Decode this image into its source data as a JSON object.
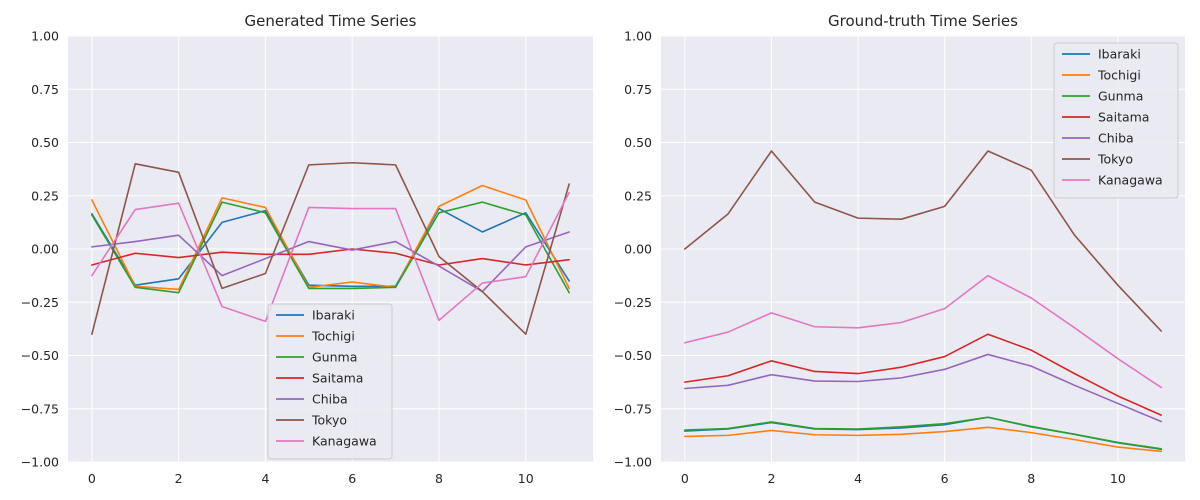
{
  "chart_data": [
    {
      "type": "line",
      "title": "Generated Time Series",
      "xlabel": "",
      "ylabel": "",
      "xlim": [
        -0.55,
        11.55
      ],
      "ylim": [
        -1.0,
        1.0
      ],
      "xticks": [
        0,
        2,
        4,
        6,
        8,
        10
      ],
      "yticks": [
        -1.0,
        -0.75,
        -0.5,
        -0.25,
        0.0,
        0.25,
        0.5,
        0.75,
        1.0
      ],
      "ytick_labels": [
        "−1.00",
        "−0.75",
        "−0.50",
        "−0.25",
        "0.00",
        "0.25",
        "0.50",
        "0.75",
        "1.00"
      ],
      "grid": true,
      "legend_position": "lower-center",
      "x": [
        0,
        1,
        2,
        3,
        4,
        5,
        6,
        7,
        8,
        9,
        10,
        11
      ],
      "series": [
        {
          "name": "Ibaraki",
          "color": "#1f77b4",
          "values": [
            0.165,
            -0.17,
            -0.14,
            0.125,
            0.18,
            -0.17,
            -0.175,
            -0.175,
            0.19,
            0.08,
            0.17,
            -0.15
          ]
        },
        {
          "name": "Tochigi",
          "color": "#ff7f0e",
          "values": [
            0.23,
            -0.175,
            -0.19,
            0.24,
            0.195,
            -0.18,
            -0.155,
            -0.18,
            0.2,
            0.298,
            0.23,
            -0.185
          ]
        },
        {
          "name": "Gunma",
          "color": "#2ca02c",
          "values": [
            0.16,
            -0.18,
            -0.205,
            0.22,
            0.17,
            -0.185,
            -0.185,
            -0.18,
            0.17,
            0.22,
            0.16,
            -0.205
          ]
        },
        {
          "name": "Saitama",
          "color": "#d62728",
          "values": [
            -0.075,
            -0.02,
            -0.04,
            -0.015,
            -0.025,
            -0.025,
            0.0,
            -0.02,
            -0.075,
            -0.045,
            -0.075,
            -0.05
          ]
        },
        {
          "name": "Chiba",
          "color": "#9467bd",
          "values": [
            0.01,
            0.035,
            0.065,
            -0.125,
            -0.045,
            0.035,
            -0.005,
            0.035,
            -0.08,
            -0.2,
            0.01,
            0.08
          ]
        },
        {
          "name": "Tokyo",
          "color": "#8c564b",
          "values": [
            -0.4,
            0.4,
            0.36,
            -0.185,
            -0.115,
            0.395,
            0.405,
            0.395,
            -0.035,
            -0.2,
            -0.4,
            0.305
          ]
        },
        {
          "name": "Kanagawa",
          "color": "#e377c2",
          "values": [
            -0.125,
            0.185,
            0.215,
            -0.27,
            -0.34,
            0.195,
            0.19,
            0.19,
            -0.335,
            -0.16,
            -0.13,
            0.265
          ]
        }
      ]
    },
    {
      "type": "line",
      "title": "Ground-truth Time Series",
      "xlabel": "",
      "ylabel": "",
      "xlim": [
        -0.55,
        11.55
      ],
      "ylim": [
        -1.0,
        1.0
      ],
      "xticks": [
        0,
        2,
        4,
        6,
        8,
        10
      ],
      "yticks": [
        -1.0,
        -0.75,
        -0.5,
        -0.25,
        0.0,
        0.25,
        0.5,
        0.75,
        1.0
      ],
      "ytick_labels": [
        "−1.00",
        "−0.75",
        "−0.50",
        "−0.25",
        "0.00",
        "0.25",
        "0.50",
        "0.75",
        "1.00"
      ],
      "grid": true,
      "legend_position": "upper-right",
      "x": [
        0,
        1,
        2,
        3,
        4,
        5,
        6,
        7,
        8,
        9,
        10,
        11
      ],
      "series": [
        {
          "name": "Ibaraki",
          "color": "#1f77b4",
          "values": [
            -0.855,
            -0.845,
            -0.815,
            -0.845,
            -0.848,
            -0.84,
            -0.825,
            -0.79,
            -0.835,
            -0.87,
            -0.91,
            -0.94
          ]
        },
        {
          "name": "Tochigi",
          "color": "#ff7f0e",
          "values": [
            -0.88,
            -0.875,
            -0.852,
            -0.872,
            -0.875,
            -0.87,
            -0.857,
            -0.837,
            -0.862,
            -0.895,
            -0.93,
            -0.95
          ]
        },
        {
          "name": "Gunma",
          "color": "#2ca02c",
          "values": [
            -0.85,
            -0.843,
            -0.812,
            -0.843,
            -0.845,
            -0.835,
            -0.82,
            -0.79,
            -0.833,
            -0.87,
            -0.908,
            -0.938
          ]
        },
        {
          "name": "Saitama",
          "color": "#d62728",
          "values": [
            -0.625,
            -0.595,
            -0.525,
            -0.575,
            -0.585,
            -0.555,
            -0.505,
            -0.4,
            -0.475,
            -0.585,
            -0.69,
            -0.78
          ]
        },
        {
          "name": "Chiba",
          "color": "#9467bd",
          "values": [
            -0.655,
            -0.64,
            -0.59,
            -0.62,
            -0.622,
            -0.605,
            -0.565,
            -0.495,
            -0.55,
            -0.64,
            -0.725,
            -0.81
          ]
        },
        {
          "name": "Tokyo",
          "color": "#8c564b",
          "values": [
            0.0,
            0.165,
            0.46,
            0.22,
            0.145,
            0.14,
            0.2,
            0.46,
            0.37,
            0.065,
            -0.17,
            -0.385
          ]
        },
        {
          "name": "Kanagawa",
          "color": "#e377c2",
          "values": [
            -0.44,
            -0.39,
            -0.3,
            -0.365,
            -0.37,
            -0.345,
            -0.28,
            -0.125,
            -0.23,
            -0.37,
            -0.515,
            -0.65
          ]
        }
      ]
    }
  ]
}
